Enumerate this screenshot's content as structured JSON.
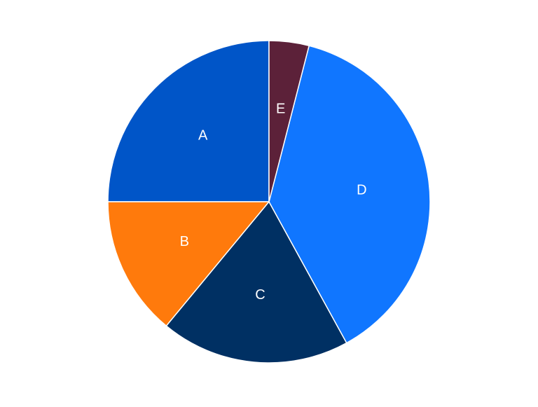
{
  "chart_data": {
    "type": "pie",
    "title": "",
    "start_angle_deg": 90,
    "direction": "counterclockwise",
    "legend": "none",
    "slices": [
      {
        "label": "A",
        "value": 25,
        "color": "#0055C8"
      },
      {
        "label": "B",
        "value": 14,
        "color": "#FF7A0C"
      },
      {
        "label": "C",
        "value": 19,
        "color": "#003063"
      },
      {
        "label": "D",
        "value": 38,
        "color": "#1076FF"
      },
      {
        "label": "E",
        "value": 4,
        "color": "#5C2139"
      }
    ]
  }
}
